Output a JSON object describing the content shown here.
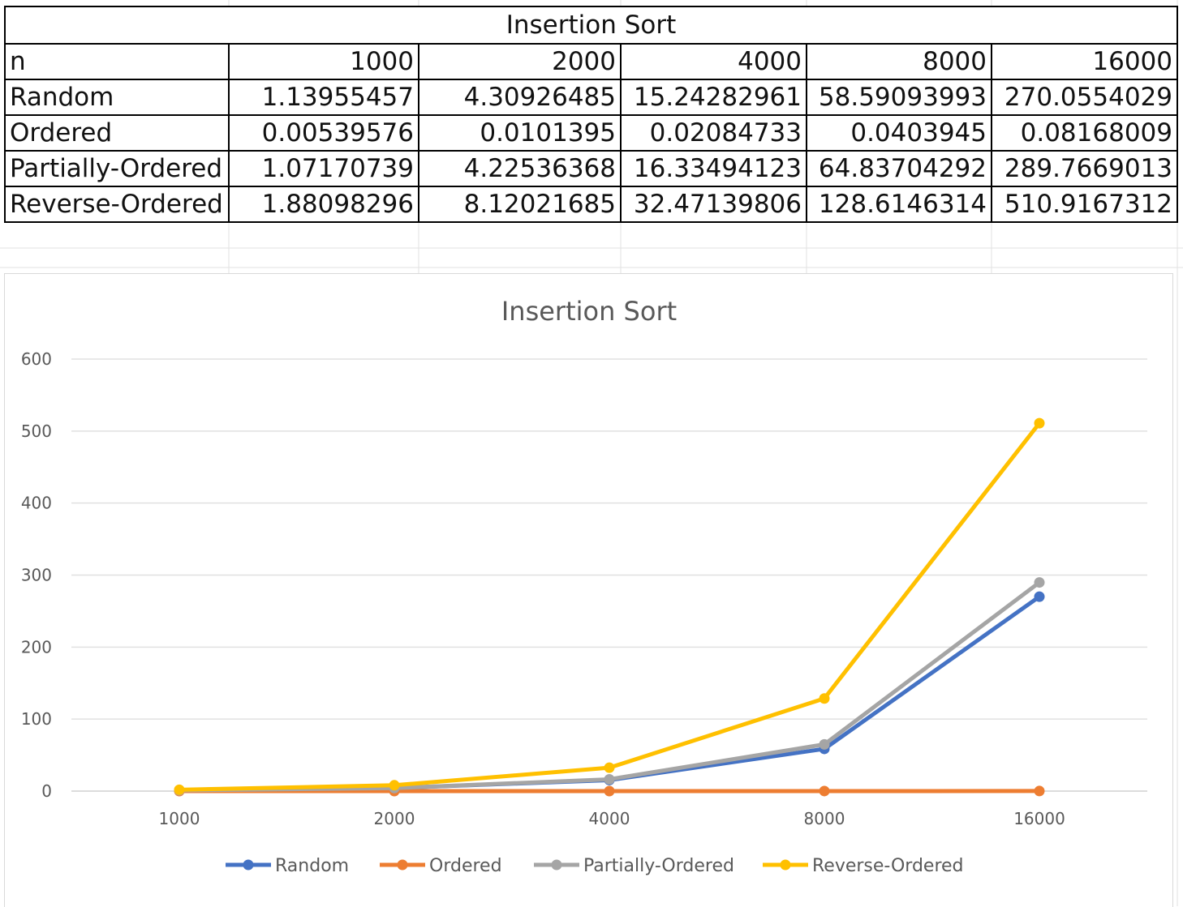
{
  "table": {
    "title": "Insertion Sort",
    "header_label": "n",
    "columns": [
      "1000",
      "2000",
      "4000",
      "8000",
      "16000"
    ],
    "rows": [
      {
        "label": "Random",
        "values": [
          "1.13955457",
          "4.30926485",
          "15.24282961",
          "58.59093993",
          "270.0554029"
        ]
      },
      {
        "label": "Ordered",
        "values": [
          "0.00539576",
          "0.0101395",
          "0.02084733",
          "0.0403945",
          "0.08168009"
        ]
      },
      {
        "label": "Partially-Ordered",
        "values": [
          "1.07170739",
          "4.22536368",
          "16.33494123",
          "64.83704292",
          "289.7669013"
        ]
      },
      {
        "label": "Reverse-Ordered",
        "values": [
          "1.88098296",
          "8.12021685",
          "32.47139806",
          "128.6146314",
          "510.9167312"
        ]
      }
    ]
  },
  "chart_data": {
    "type": "line",
    "title": "Insertion Sort",
    "xlabel": "",
    "ylabel": "",
    "categories": [
      "1000",
      "2000",
      "4000",
      "8000",
      "16000"
    ],
    "ylim": [
      0,
      600
    ],
    "yticks": [
      0,
      100,
      200,
      300,
      400,
      500,
      600
    ],
    "grid": true,
    "legend_position": "bottom",
    "series": [
      {
        "name": "Random",
        "color": "#4472C4",
        "values": [
          1.13955457,
          4.30926485,
          15.24282961,
          58.59093993,
          270.0554029
        ]
      },
      {
        "name": "Ordered",
        "color": "#ED7D31",
        "values": [
          0.00539576,
          0.0101395,
          0.02084733,
          0.0403945,
          0.08168009
        ]
      },
      {
        "name": "Partially-Ordered",
        "color": "#A5A5A5",
        "values": [
          1.07170739,
          4.22536368,
          16.33494123,
          64.83704292,
          289.7669013
        ]
      },
      {
        "name": "Reverse-Ordered",
        "color": "#FFC000",
        "values": [
          1.88098296,
          8.12021685,
          32.47139806,
          128.6146314,
          510.9167312
        ]
      }
    ]
  }
}
